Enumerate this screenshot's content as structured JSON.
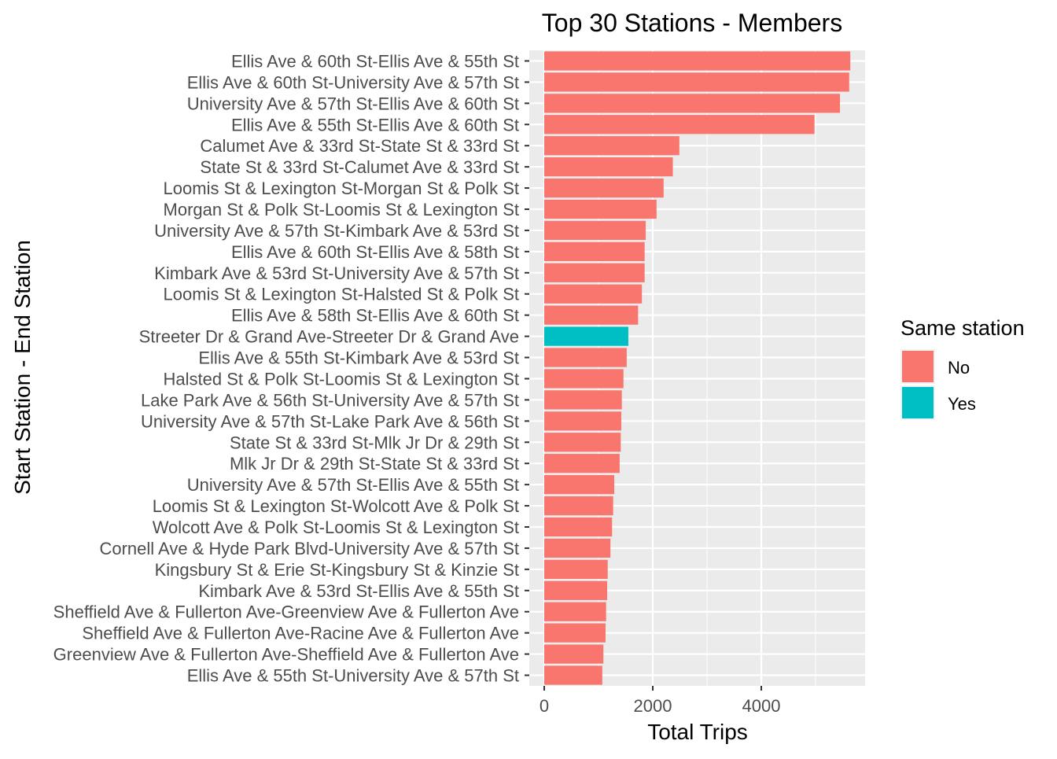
{
  "chart_data": {
    "type": "bar",
    "orientation": "horizontal",
    "title": "Top 30 Stations - Members",
    "xlabel": "Total Trips",
    "ylabel": "Start Station - End Station",
    "xlim": [
      0,
      5900
    ],
    "x_ticks": [
      0,
      2000,
      4000
    ],
    "grid": true,
    "legend": {
      "title": "Same station",
      "placement": "right",
      "entries": [
        {
          "label": "No",
          "color": "#F8766D"
        },
        {
          "label": "Yes",
          "color": "#00BFC4"
        }
      ]
    },
    "categories": [
      "Ellis Ave & 60th St-Ellis Ave & 55th St",
      "Ellis Ave & 60th St-University Ave & 57th St",
      "University Ave & 57th St-Ellis Ave & 60th St",
      "Ellis Ave & 55th St-Ellis Ave & 60th St",
      "Calumet Ave & 33rd St-State St & 33rd St",
      "State St & 33rd St-Calumet Ave & 33rd St",
      "Loomis St & Lexington St-Morgan St & Polk St",
      "Morgan St & Polk St-Loomis St & Lexington St",
      "University Ave & 57th St-Kimbark Ave & 53rd St",
      "Ellis Ave & 60th St-Ellis Ave & 58th St",
      "Kimbark Ave & 53rd St-University Ave & 57th St",
      "Loomis St & Lexington St-Halsted St & Polk St",
      "Ellis Ave & 58th St-Ellis Ave & 60th St",
      "Streeter Dr & Grand Ave-Streeter Dr & Grand Ave",
      "Ellis Ave & 55th St-Kimbark Ave & 53rd St",
      "Halsted St & Polk St-Loomis St & Lexington St",
      "Lake Park Ave & 56th St-University Ave & 57th St",
      "University Ave & 57th St-Lake Park Ave & 56th St",
      "State St & 33rd St-Mlk Jr Dr & 29th St",
      "Mlk Jr Dr & 29th St-State St & 33rd St",
      "University Ave & 57th St-Ellis Ave & 55th St",
      "Loomis St & Lexington St-Wolcott Ave & Polk St",
      "Wolcott Ave & Polk St-Loomis St & Lexington St",
      "Cornell Ave & Hyde Park Blvd-University Ave & 57th St",
      "Kingsbury St & Erie St-Kingsbury St & Kinzie St",
      "Kimbark Ave & 53rd St-Ellis Ave & 55th St",
      "Sheffield Ave & Fullerton Ave-Greenview Ave & Fullerton Ave",
      "Sheffield Ave & Fullerton Ave-Racine Ave & Fullerton Ave",
      "Greenview Ave & Fullerton Ave-Sheffield Ave & Fullerton Ave",
      "Ellis Ave & 55th St-University Ave & 57th St"
    ],
    "values": [
      5640,
      5620,
      5450,
      4980,
      2490,
      2370,
      2200,
      2070,
      1870,
      1850,
      1850,
      1800,
      1730,
      1550,
      1520,
      1460,
      1430,
      1420,
      1410,
      1390,
      1290,
      1270,
      1250,
      1220,
      1170,
      1160,
      1140,
      1130,
      1090,
      1070
    ],
    "same_station": [
      "No",
      "No",
      "No",
      "No",
      "No",
      "No",
      "No",
      "No",
      "No",
      "No",
      "No",
      "No",
      "No",
      "Yes",
      "No",
      "No",
      "No",
      "No",
      "No",
      "No",
      "No",
      "No",
      "No",
      "No",
      "No",
      "No",
      "No",
      "No",
      "No",
      "No"
    ]
  }
}
